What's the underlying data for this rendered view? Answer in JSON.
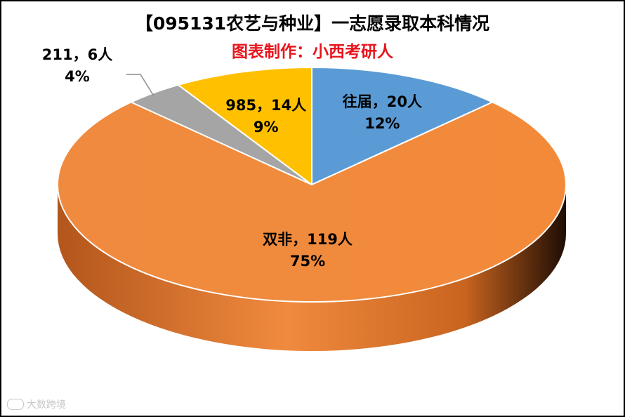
{
  "title": "【095131农艺与种业】一志愿录取本科情况",
  "subtitle": "图表制作：小西考研人",
  "watermark": "大数跨境",
  "chart_data": {
    "type": "pie",
    "title": "【095131农艺与种业】一志愿录取本科情况",
    "subtitle": "图表制作：小西考研人",
    "style": "3d",
    "slices": [
      {
        "name": "往届",
        "value": 20,
        "unit": "人",
        "percent": "12%",
        "label": "往届，20人",
        "percent_label": "12%",
        "color": "#5b9bd5"
      },
      {
        "name": "双非",
        "value": 119,
        "unit": "人",
        "percent": "75%",
        "label": "双非，119人",
        "percent_label": "75%",
        "color": "#ed7d31"
      },
      {
        "name": "211",
        "value": 6,
        "unit": "人",
        "percent": "4%",
        "label": "211，6人",
        "percent_label": "4%",
        "color": "#a5a5a5"
      },
      {
        "name": "985",
        "value": 14,
        "unit": "人",
        "percent": "9%",
        "label": "985，14人",
        "percent_label": "9%",
        "color": "#ffc000"
      }
    ]
  }
}
